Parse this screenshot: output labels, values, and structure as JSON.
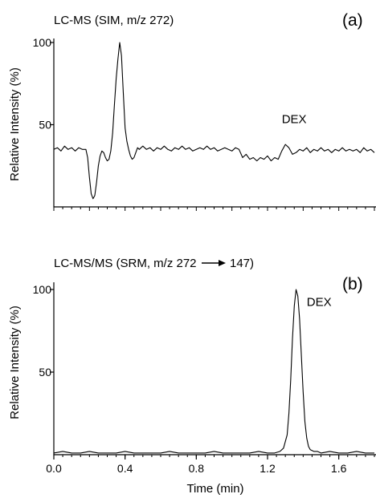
{
  "chart_data": [
    {
      "type": "line",
      "title": "LC-MS (SIM, m/z 272)",
      "panel_label": "(a)",
      "ylabel": "Relative Intensity (%)",
      "xlim": [
        0,
        1.8
      ],
      "ylim": [
        0,
        100
      ],
      "yticks": [
        "100",
        "50"
      ],
      "ytick_values": [
        100,
        50
      ],
      "annotation": {
        "text": "DEX",
        "x": 1.28,
        "y": 51
      },
      "series": [
        {
          "x": [
            0,
            0.02,
            0.04,
            0.06,
            0.08,
            0.1,
            0.12,
            0.14,
            0.16,
            0.18,
            0.19,
            0.2,
            0.21,
            0.22,
            0.23,
            0.24,
            0.25,
            0.26,
            0.27,
            0.28,
            0.29,
            0.3,
            0.31,
            0.32,
            0.33,
            0.34,
            0.35,
            0.36,
            0.37,
            0.38,
            0.39,
            0.4,
            0.41,
            0.42,
            0.43,
            0.44,
            0.45,
            0.46,
            0.47,
            0.48,
            0.49,
            0.5,
            0.52,
            0.54,
            0.56,
            0.58,
            0.6,
            0.62,
            0.64,
            0.66,
            0.68,
            0.7,
            0.72,
            0.74,
            0.76,
            0.78,
            0.8,
            0.82,
            0.84,
            0.86,
            0.88,
            0.9,
            0.92,
            0.94,
            0.96,
            0.98,
            1.0,
            1.02,
            1.04,
            1.06,
            1.08,
            1.1,
            1.12,
            1.14,
            1.16,
            1.18,
            1.2,
            1.22,
            1.24,
            1.26,
            1.28,
            1.3,
            1.32,
            1.34,
            1.36,
            1.38,
            1.4,
            1.42,
            1.44,
            1.46,
            1.48,
            1.5,
            1.52,
            1.54,
            1.56,
            1.58,
            1.6,
            1.62,
            1.64,
            1.66,
            1.68,
            1.7,
            1.72,
            1.74,
            1.76,
            1.78,
            1.8
          ],
          "y": [
            35,
            36,
            34,
            37,
            35,
            36,
            34,
            36,
            35,
            35,
            30,
            18,
            8,
            5,
            7,
            15,
            25,
            31,
            34,
            33,
            30,
            28,
            29,
            34,
            45,
            62,
            78,
            90,
            100,
            92,
            70,
            48,
            40,
            35,
            31,
            29,
            30,
            33,
            36,
            35,
            36,
            37,
            35,
            36,
            34,
            36,
            35,
            37,
            35,
            34,
            36,
            35,
            37,
            35,
            36,
            34,
            35,
            36,
            35,
            37,
            35,
            36,
            34,
            35,
            36,
            35,
            34,
            36,
            35,
            30,
            32,
            29,
            30,
            28,
            30,
            29,
            31,
            28,
            30,
            29,
            34,
            38,
            36,
            32,
            33,
            35,
            34,
            36,
            33,
            35,
            34,
            36,
            34,
            35,
            33,
            35,
            34,
            36,
            34,
            35,
            34,
            35,
            33,
            36,
            34,
            35,
            33
          ]
        }
      ]
    },
    {
      "type": "line",
      "title": "LC-MS/MS (SRM, m/z 272",
      "title_suffix": "147)",
      "panel_label": "(b)",
      "xlabel": "Time (min)",
      "ylabel": "Relative Intensity (%)",
      "xlim": [
        0,
        1.8
      ],
      "ylim": [
        0,
        100
      ],
      "xticks": [
        "0.0",
        "0.4",
        "0.8",
        "1.2",
        "1.6"
      ],
      "xtick_values": [
        0.0,
        0.4,
        0.8,
        1.2,
        1.6
      ],
      "yticks": [
        "100",
        "50"
      ],
      "ytick_values": [
        100,
        50
      ],
      "annotation": {
        "text": "DEX",
        "x": 1.42,
        "y": 90
      },
      "series": [
        {
          "x": [
            0,
            0.05,
            0.1,
            0.15,
            0.2,
            0.25,
            0.3,
            0.35,
            0.4,
            0.45,
            0.5,
            0.55,
            0.6,
            0.65,
            0.7,
            0.75,
            0.8,
            0.85,
            0.9,
            0.95,
            1.0,
            1.05,
            1.1,
            1.15,
            1.2,
            1.24,
            1.27,
            1.29,
            1.31,
            1.32,
            1.33,
            1.34,
            1.35,
            1.36,
            1.37,
            1.38,
            1.39,
            1.4,
            1.41,
            1.42,
            1.43,
            1.44,
            1.46,
            1.48,
            1.5,
            1.55,
            1.6,
            1.65,
            1.7,
            1.75,
            1.8
          ],
          "y": [
            1,
            2,
            1,
            1,
            2,
            1,
            1,
            1,
            2,
            1,
            1,
            1,
            1,
            2,
            1,
            1,
            1,
            1,
            2,
            1,
            1,
            1,
            1,
            2,
            1,
            1,
            2,
            4,
            12,
            25,
            45,
            70,
            90,
            100,
            96,
            82,
            60,
            38,
            20,
            10,
            5,
            3,
            2,
            2,
            1,
            2,
            1,
            1,
            2,
            1,
            1
          ]
        }
      ]
    }
  ]
}
